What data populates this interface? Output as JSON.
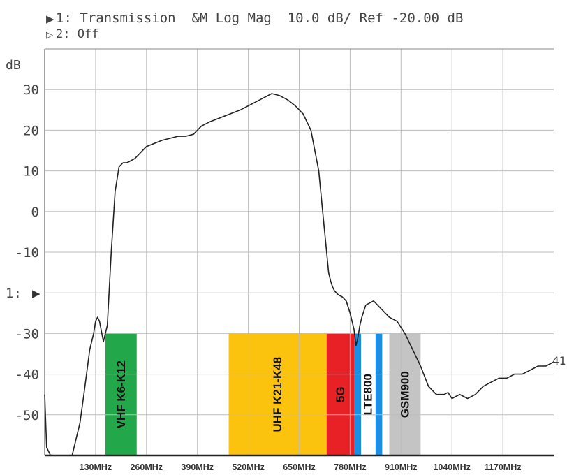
{
  "header": {
    "line1_marker": "▶",
    "line1": "1: Transmission  &M Log Mag  10.0 dB/ Ref -20.00 dB",
    "line2_marker": "▷",
    "line2": "2: Off"
  },
  "chart_data": {
    "type": "line",
    "ylabel": "dB",
    "ylim": [
      -60,
      40
    ],
    "xlim": [
      0,
      1300
    ],
    "y_ticks": [
      30,
      20,
      10,
      0,
      -10,
      -20,
      -30,
      -40,
      -50
    ],
    "y_tick_labels": [
      "30",
      "20",
      "10",
      "0",
      "-10",
      "1:",
      "-30",
      "-40",
      "-50"
    ],
    "ref_marker": "▶",
    "x_ticks": [
      130,
      260,
      390,
      520,
      650,
      780,
      910,
      1040,
      1170
    ],
    "x_tick_labels": [
      "130MHz",
      "260MHz",
      "390MHz",
      "520MHz",
      "650MHz",
      "780MHz",
      "910MHz",
      "1040MHz",
      "1170MHz"
    ],
    "grid": true,
    "trace_end_label": "41",
    "bands": [
      {
        "name": "VHF K6-K12",
        "start": 155,
        "end": 235,
        "color": "#22a84a",
        "text_color": "#111111"
      },
      {
        "name": "UHF K21-K48",
        "start": 470,
        "end": 720,
        "color": "#fcc30e",
        "text_color": "#111111"
      },
      {
        "name": "5G",
        "start": 720,
        "end": 790,
        "color": "#e82127",
        "text_color": "#111111"
      },
      {
        "name": "LTE800",
        "start": 790,
        "end": 862,
        "color": "#ffffff",
        "text_color": "#111111"
      },
      {
        "name": "GSM900",
        "start": 880,
        "end": 960,
        "color": "#c4c4c4",
        "text_color": "#111111"
      }
    ],
    "band_edges": [
      {
        "start": 790,
        "end": 808,
        "color": "#1a8fe3"
      },
      {
        "start": 845,
        "end": 862,
        "color": "#1a8fe3"
      }
    ],
    "band_top": -30,
    "series": [
      {
        "color": "#222222",
        "x": [
          0,
          5,
          15,
          50,
          70,
          90,
          100,
          115,
          125,
          130,
          135,
          140,
          150,
          160,
          170,
          180,
          190,
          200,
          210,
          230,
          260,
          300,
          340,
          360,
          380,
          400,
          420,
          460,
          500,
          540,
          560,
          580,
          600,
          620,
          640,
          660,
          680,
          700,
          710,
          720,
          725,
          730,
          735,
          740,
          745,
          750,
          760,
          770,
          780,
          790,
          795,
          800,
          805,
          810,
          820,
          840,
          860,
          870,
          880,
          900,
          920,
          940,
          960,
          980,
          1000,
          1020,
          1030,
          1040,
          1060,
          1080,
          1100,
          1120,
          1140,
          1160,
          1180,
          1200,
          1220,
          1240,
          1260,
          1280,
          1300
        ],
        "y": [
          -45,
          -58,
          -60,
          -60,
          -60,
          -52,
          -45,
          -34,
          -30,
          -27,
          -26,
          -27,
          -32,
          -28,
          -10,
          5,
          11,
          12,
          12,
          13,
          16,
          17.5,
          18.5,
          18.5,
          19,
          21,
          22,
          23.5,
          25,
          27,
          28,
          29,
          28.5,
          27.5,
          26,
          24,
          20,
          10,
          0,
          -10,
          -15,
          -17,
          -18.5,
          -19.5,
          -20,
          -20.5,
          -21,
          -22,
          -25,
          -29,
          -33,
          -31,
          -28,
          -26,
          -23,
          -22,
          -24,
          -25,
          -26,
          -27,
          -30,
          -34,
          -38,
          -43,
          -45,
          -45,
          -44.5,
          -46,
          -45,
          -46,
          -45,
          -43,
          -42,
          -41,
          -41,
          -40,
          -40,
          -39,
          -38,
          -38,
          -37
        ]
      }
    ]
  }
}
